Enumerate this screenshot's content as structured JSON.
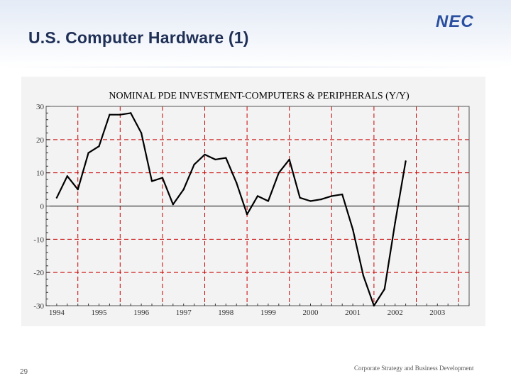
{
  "slide": {
    "title": "U.S. Computer Hardware (1)",
    "logo_text": "NEC",
    "page_number": "29",
    "footer": "Corporate Strategy and Business Development"
  },
  "colors": {
    "title": "#1f2f56",
    "logo": "#2b4fa0",
    "line": "#000000",
    "grid": "#cc0000"
  },
  "chart_data": {
    "type": "line",
    "title": "NOMINAL PDE INVESTMENT-COMPUTERS & PERIPHERALS (Y/Y)",
    "xlabel": "",
    "ylabel": "",
    "ylim": [
      -30,
      30
    ],
    "xlim": [
      1993.75,
      2003.75
    ],
    "yticks": [
      30,
      20,
      10,
      0,
      -10,
      -20,
      -30
    ],
    "ytick_labels": [
      "30",
      "20",
      "10",
      "0",
      "-10",
      "-20",
      "-30"
    ],
    "xticks": [
      1994,
      1995,
      1996,
      1997,
      1998,
      1999,
      2000,
      2001,
      2002,
      2003
    ],
    "xtick_labels": [
      "1994",
      "1995",
      "1996",
      "1997",
      "1998",
      "1999",
      "2000",
      "2001",
      "2002",
      "2003"
    ],
    "grid": true,
    "zero_line": true,
    "x": [
      1994.0,
      1994.25,
      1994.5,
      1994.75,
      1995.0,
      1995.25,
      1995.5,
      1995.75,
      1996.0,
      1996.25,
      1996.5,
      1996.75,
      1997.0,
      1997.25,
      1997.5,
      1997.75,
      1998.0,
      1998.25,
      1998.5,
      1998.75,
      1999.0,
      1999.25,
      1999.5,
      1999.75,
      2000.0,
      2000.25,
      2000.5,
      2000.75,
      2001.0,
      2001.25,
      2001.5,
      2001.75,
      2002.0,
      2002.25
    ],
    "values": [
      2.5,
      9,
      5,
      16,
      18,
      27.5,
      27.5,
      28,
      22,
      7.5,
      8.5,
      0.5,
      5,
      12.5,
      15.5,
      14,
      14.5,
      7,
      -2.5,
      3,
      1.5,
      10,
      14,
      2.5,
      1.5,
      2,
      3,
      3.5,
      -7,
      -21,
      -30,
      -25,
      -5,
      13.5
    ]
  }
}
